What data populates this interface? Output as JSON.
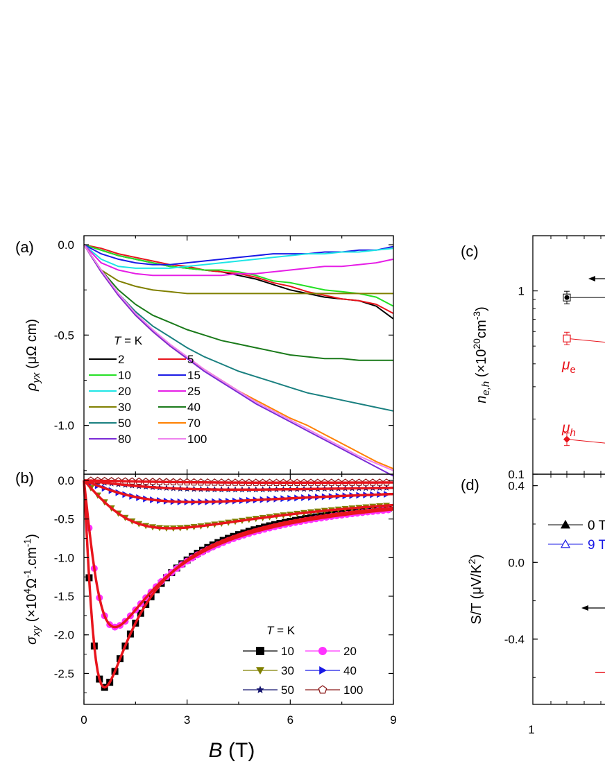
{
  "panels": {
    "a": {
      "label": "(a)"
    },
    "b": {
      "label": "(b)"
    },
    "c": {
      "label": "(c)"
    },
    "d": {
      "label": "(d)"
    }
  },
  "chart_data": [
    {
      "id": "a",
      "type": "line",
      "title": "",
      "xlabel": "",
      "ylabel_parts": [
        "ρ",
        "yx",
        " (μΩ cm)"
      ],
      "xlim": [
        0,
        9
      ],
      "ylim": [
        -1.27,
        0.05
      ],
      "yticks": [
        0.0,
        -0.5,
        -1.0
      ],
      "ytick_labels": [
        "0.0",
        "-0.5",
        "-1.0"
      ],
      "legend_title": [
        "T",
        " = K"
      ],
      "x": [
        0,
        0.5,
        1,
        1.5,
        2,
        2.5,
        3,
        3.5,
        4,
        4.5,
        5,
        5.5,
        6,
        6.5,
        7,
        7.5,
        8,
        8.5,
        9
      ],
      "series": [
        {
          "name": "2",
          "color": "#000000",
          "values": [
            0,
            -0.03,
            -0.06,
            -0.08,
            -0.1,
            -0.12,
            -0.13,
            -0.14,
            -0.15,
            -0.17,
            -0.19,
            -0.22,
            -0.25,
            -0.27,
            -0.29,
            -0.3,
            -0.31,
            -0.34,
            -0.41
          ]
        },
        {
          "name": "5",
          "color": "#e8141c",
          "values": [
            0,
            -0.02,
            -0.05,
            -0.07,
            -0.09,
            -0.11,
            -0.12,
            -0.14,
            -0.15,
            -0.16,
            -0.18,
            -0.21,
            -0.23,
            -0.26,
            -0.28,
            -0.3,
            -0.31,
            -0.33,
            -0.38
          ]
        },
        {
          "name": "10",
          "color": "#24e024",
          "values": [
            0,
            -0.03,
            -0.06,
            -0.08,
            -0.1,
            -0.12,
            -0.13,
            -0.14,
            -0.14,
            -0.15,
            -0.17,
            -0.2,
            -0.21,
            -0.23,
            -0.25,
            -0.26,
            -0.27,
            -0.29,
            -0.34
          ]
        },
        {
          "name": "15",
          "color": "#1a1ae6",
          "values": [
            0,
            -0.05,
            -0.08,
            -0.1,
            -0.11,
            -0.11,
            -0.1,
            -0.09,
            -0.08,
            -0.07,
            -0.06,
            -0.05,
            -0.05,
            -0.05,
            -0.04,
            -0.04,
            -0.03,
            -0.03,
            -0.01
          ]
        },
        {
          "name": "20",
          "color": "#1ee6e6",
          "values": [
            0,
            -0.08,
            -0.12,
            -0.13,
            -0.13,
            -0.13,
            -0.12,
            -0.11,
            -0.1,
            -0.09,
            -0.08,
            -0.07,
            -0.06,
            -0.05,
            -0.05,
            -0.04,
            -0.04,
            -0.03,
            -0.02
          ]
        },
        {
          "name": "25",
          "color": "#e61ee6",
          "values": [
            0,
            -0.1,
            -0.14,
            -0.16,
            -0.17,
            -0.17,
            -0.17,
            -0.17,
            -0.17,
            -0.16,
            -0.16,
            -0.15,
            -0.14,
            -0.13,
            -0.12,
            -0.12,
            -0.11,
            -0.1,
            -0.08
          ]
        },
        {
          "name": "30",
          "color": "#808000",
          "values": [
            0,
            -0.14,
            -0.2,
            -0.23,
            -0.25,
            -0.26,
            -0.27,
            -0.27,
            -0.27,
            -0.27,
            -0.27,
            -0.27,
            -0.27,
            -0.27,
            -0.27,
            -0.27,
            -0.27,
            -0.27,
            -0.27
          ]
        },
        {
          "name": "40",
          "color": "#1a7a1a",
          "values": [
            0,
            -0.14,
            -0.25,
            -0.33,
            -0.39,
            -0.43,
            -0.47,
            -0.5,
            -0.53,
            -0.55,
            -0.57,
            -0.59,
            -0.61,
            -0.62,
            -0.63,
            -0.63,
            -0.64,
            -0.64,
            -0.64
          ]
        },
        {
          "name": "50",
          "color": "#1a8080",
          "values": [
            0,
            -0.15,
            -0.27,
            -0.37,
            -0.45,
            -0.51,
            -0.57,
            -0.62,
            -0.66,
            -0.7,
            -0.73,
            -0.76,
            -0.79,
            -0.82,
            -0.84,
            -0.86,
            -0.88,
            -0.9,
            -0.92
          ]
        },
        {
          "name": "70",
          "color": "#ff8000",
          "values": [
            0,
            -0.15,
            -0.28,
            -0.39,
            -0.48,
            -0.56,
            -0.63,
            -0.69,
            -0.75,
            -0.81,
            -0.86,
            -0.91,
            -0.96,
            -1.0,
            -1.05,
            -1.1,
            -1.15,
            -1.2,
            -1.24
          ]
        },
        {
          "name": "80",
          "color": "#7a2ad6",
          "values": [
            0,
            -0.15,
            -0.28,
            -0.39,
            -0.48,
            -0.56,
            -0.63,
            -0.7,
            -0.76,
            -0.82,
            -0.88,
            -0.93,
            -0.98,
            -1.03,
            -1.08,
            -1.13,
            -1.18,
            -1.23,
            -1.28
          ]
        },
        {
          "name": "100",
          "color": "#ee82ee",
          "values": [
            0,
            -0.14,
            -0.27,
            -0.38,
            -0.47,
            -0.55,
            -0.62,
            -0.69,
            -0.75,
            -0.81,
            -0.87,
            -0.92,
            -0.97,
            -1.02,
            -1.07,
            -1.12,
            -1.17,
            -1.21,
            -1.25
          ]
        }
      ]
    },
    {
      "id": "b",
      "type": "scatter",
      "title": "",
      "xlabel_parts": [
        "B",
        " (T)"
      ],
      "ylabel_parts": [
        "σ",
        "xy",
        " (×10",
        "4",
        "Ω",
        "-1",
        ".cm",
        "-1",
        ")"
      ],
      "xlim": [
        0,
        9
      ],
      "ylim": [
        -2.9,
        0.08
      ],
      "xticks": [
        0,
        3,
        6,
        9
      ],
      "xtick_labels": [
        "0",
        "3",
        "6",
        "9"
      ],
      "yticks": [
        0.0,
        -0.5,
        -1.0,
        -1.5,
        -2.0,
        -2.5
      ],
      "ytick_labels": [
        "0.0",
        "-0.5",
        "-1.0",
        "-1.5",
        "-2.0",
        "-2.5"
      ],
      "legend_title": [
        "T",
        " = K"
      ],
      "fit_color": "#e8141c",
      "series": [
        {
          "name": "10",
          "marker": "square",
          "color": "#000000",
          "peak": -2.68,
          "bpeak": 0.6
        },
        {
          "name": "20",
          "marker": "circle",
          "color": "#ff33ff",
          "peak": -1.9,
          "bpeak": 0.9
        },
        {
          "name": "30",
          "marker": "triangle-down",
          "color": "#808000",
          "peak": -0.62,
          "bpeak": 2.5
        },
        {
          "name": "40",
          "marker": "triangle-right",
          "color": "#1a1ae6",
          "peak": -0.28,
          "bpeak": 3.2
        },
        {
          "name": "50",
          "marker": "star",
          "color": "#14146e",
          "peak": -0.12,
          "bpeak": 4.5
        },
        {
          "name": "100",
          "marker": "pentagon",
          "color": "#8b1a1a",
          "peak": -0.03,
          "bpeak": 6.0
        }
      ]
    },
    {
      "id": "c",
      "type": "scatter",
      "title": "",
      "xlabel": "",
      "ylabel_parts": [
        "n",
        "e,h",
        " (×10",
        "20",
        "cm",
        "-3",
        ")"
      ],
      "yscale": "log",
      "ylim": [
        0.1,
        2.0
      ],
      "yticks": [
        1,
        0.1
      ],
      "ytick_labels": [
        "1",
        "0.1"
      ],
      "annotations": [
        {
          "text": "μ",
          "sub": "e",
          "color": "#e8141c"
        },
        {
          "text": "μ",
          "sub": "h",
          "color": "#e8141c"
        }
      ],
      "points": [
        {
          "x": 2,
          "y": 0.92,
          "marker": "filled-circle",
          "color": "#000000"
        },
        {
          "x": 2,
          "y": 0.55,
          "marker": "open-square",
          "color": "#e8141c"
        },
        {
          "x": 2,
          "y": 0.155,
          "marker": "filled-diamond",
          "color": "#e8141c"
        }
      ]
    },
    {
      "id": "d",
      "type": "scatter",
      "title": "",
      "xlabel": "",
      "ylabel_parts": [
        "S/T",
        " (μV/K",
        "2",
        ")"
      ],
      "ylim": [
        -0.74,
        0.46
      ],
      "yticks": [
        0.4,
        0.0,
        -0.4
      ],
      "ytick_labels": [
        "0.4",
        "0.0",
        "-0.4"
      ],
      "xtick_labels": [
        "1"
      ],
      "legend": [
        {
          "name": "0 T",
          "marker": "filled-triangle",
          "color": "#000000"
        },
        {
          "name": "9 T",
          "marker": "open-triangle",
          "color": "#1a1ae6"
        }
      ]
    }
  ]
}
